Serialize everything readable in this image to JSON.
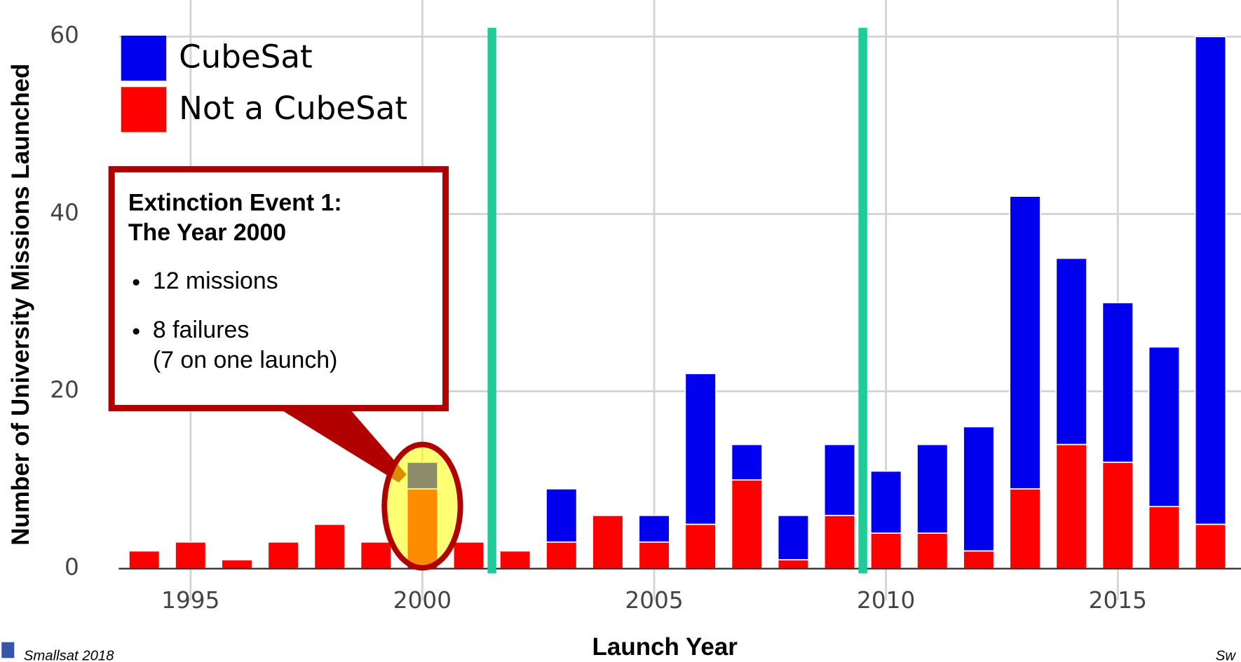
{
  "chart_data": {
    "type": "bar",
    "stacked": true,
    "xlabel": "Launch Year",
    "ylabel": "Number of University Missions Launched",
    "x": [
      1994,
      1995,
      1996,
      1997,
      1998,
      1999,
      2000,
      2001,
      2002,
      2003,
      2004,
      2005,
      2006,
      2007,
      2008,
      2009,
      2010,
      2011,
      2012,
      2013,
      2014,
      2015,
      2016,
      2017
    ],
    "series": [
      {
        "name": "CubeSat",
        "color": "#0000ee",
        "values": [
          0,
          0,
          0,
          0,
          0,
          0,
          3,
          0,
          0,
          6,
          0,
          3,
          17,
          4,
          5,
          8,
          7,
          10,
          14,
          33,
          21,
          18,
          18,
          55
        ]
      },
      {
        "name": "Not a CubeSat",
        "color": "#ff0000",
        "values": [
          2,
          3,
          1,
          3,
          5,
          3,
          9,
          3,
          2,
          3,
          6,
          3,
          5,
          10,
          1,
          6,
          4,
          4,
          2,
          9,
          14,
          12,
          7,
          5
        ]
      }
    ],
    "xlim": [
      1993.45,
      2017.35
    ],
    "xticks": [
      1995,
      2000,
      2005,
      2010,
      2015
    ],
    "ylim": [
      0,
      61
    ],
    "yticks": [
      0,
      20,
      40,
      60
    ],
    "grid": true,
    "legend": "top-left",
    "vlines": [
      {
        "x": 2001.5,
        "color": "#1fcc98"
      },
      {
        "x": 2009.5,
        "color": "#1fcc98"
      }
    ],
    "annotation": {
      "title": [
        "Extinction Event 1:",
        "The Year 2000"
      ],
      "bullets": [
        "12 missions",
        "8 failures"
      ],
      "note": "(7 on one launch)",
      "x": 2000
    },
    "footer": {
      "left": "Smallsat 2018",
      "right": "Sw"
    }
  }
}
